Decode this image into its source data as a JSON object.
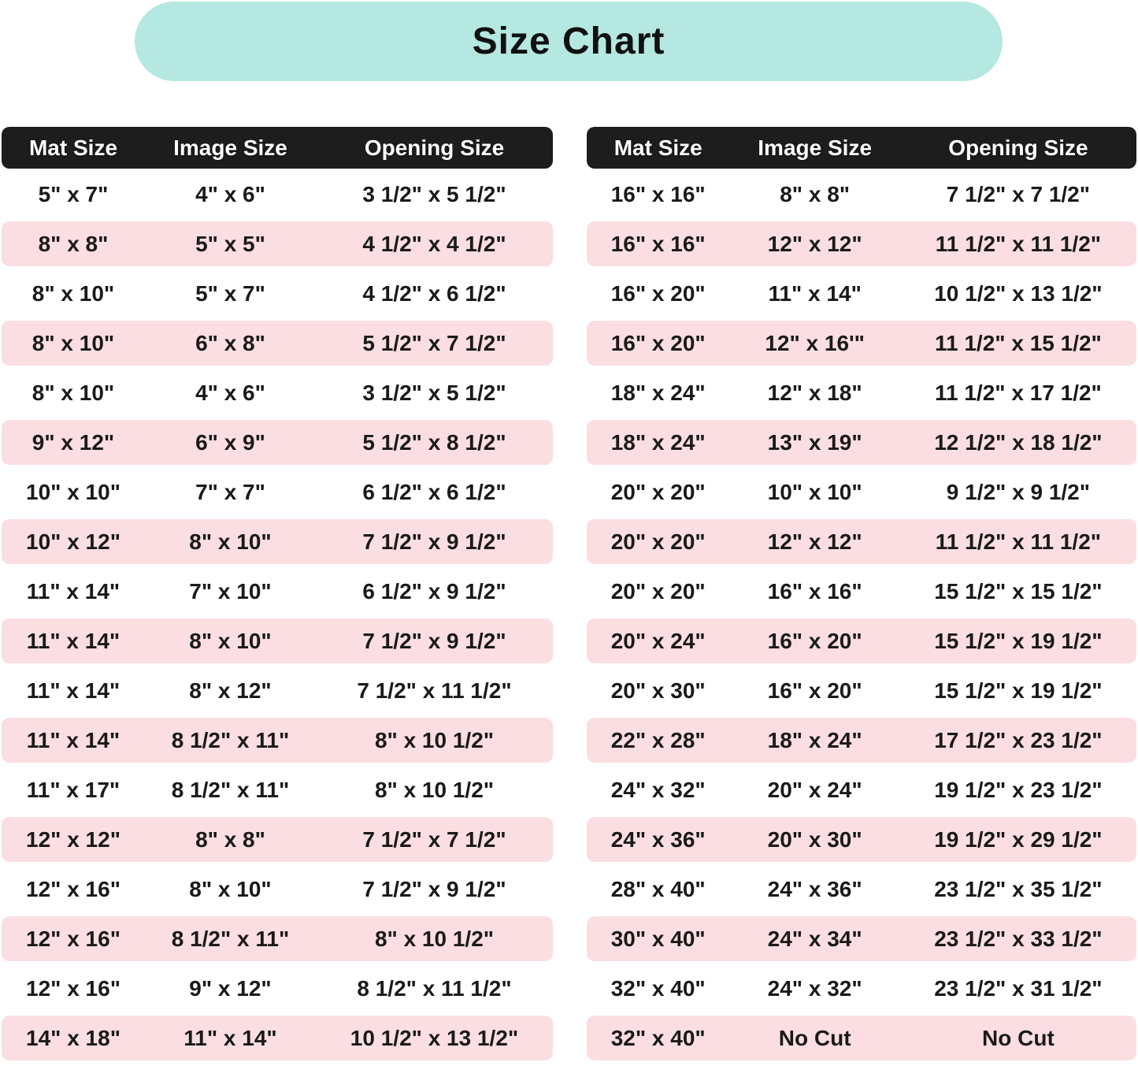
{
  "title": "Size Chart",
  "colors": {
    "title_background": "#b4e8e0",
    "header_background": "#1d1d1d",
    "header_text": "#ffffff",
    "row_pink": "#fbdee2",
    "row_white": "#ffffff",
    "body_text": "#1a1a1a"
  },
  "chart_data": [
    {
      "type": "table",
      "side": "left",
      "columns": [
        "Mat Size",
        "Image Size",
        "Opening Size"
      ],
      "rows": [
        [
          "5\" x 7\"",
          "4\" x 6\"",
          "3 1/2\" x 5 1/2\""
        ],
        [
          "8\" x 8\"",
          "5\" x 5\"",
          "4 1/2\" x 4 1/2\""
        ],
        [
          "8\" x 10\"",
          "5\" x 7\"",
          "4 1/2\" x 6 1/2\""
        ],
        [
          "8\" x 10\"",
          "6\" x 8\"",
          "5 1/2\" x 7 1/2\""
        ],
        [
          "8\" x 10\"",
          "4\" x 6\"",
          "3 1/2\" x 5 1/2\""
        ],
        [
          "9\" x 12\"",
          "6\" x 9\"",
          "5 1/2\" x 8 1/2\""
        ],
        [
          "10\" x 10\"",
          "7\" x 7\"",
          "6 1/2\" x 6 1/2\""
        ],
        [
          "10\" x 12\"",
          "8\" x 10\"",
          "7 1/2\" x 9 1/2\""
        ],
        [
          "11\" x 14\"",
          "7\" x 10\"",
          "6 1/2\" x 9 1/2\""
        ],
        [
          "11\" x 14\"",
          "8\" x 10\"",
          "7 1/2\" x 9 1/2\""
        ],
        [
          "11\" x 14\"",
          "8\" x 12\"",
          "7 1/2\" x 11 1/2\""
        ],
        [
          "11\" x 14\"",
          "8 1/2\" x 11\"",
          "8\" x 10 1/2\""
        ],
        [
          "11\" x 17\"",
          "8 1/2\" x 11\"",
          "8\" x 10 1/2\""
        ],
        [
          "12\" x 12\"",
          "8\" x 8\"",
          "7 1/2\" x 7 1/2\""
        ],
        [
          "12\" x 16\"",
          "8\" x 10\"",
          "7 1/2\" x 9 1/2\""
        ],
        [
          "12\" x 16\"",
          "8 1/2\" x 11\"",
          "8\" x 10 1/2\""
        ],
        [
          "12\" x 16\"",
          "9\" x 12\"",
          "8 1/2\" x 11 1/2\""
        ],
        [
          "14\" x 18\"",
          "11\" x 14\"",
          "10 1/2\" x 13 1/2\""
        ]
      ]
    },
    {
      "type": "table",
      "side": "right",
      "columns": [
        "Mat Size",
        "Image Size",
        "Opening Size"
      ],
      "rows": [
        [
          "16\" x 16\"",
          "8\" x 8\"",
          "7 1/2\" x 7 1/2\""
        ],
        [
          "16\" x 16\"",
          "12\" x 12\"",
          "11 1/2\" x 11 1/2\""
        ],
        [
          "16\" x 20\"",
          "11\" x 14\"",
          "10 1/2\" x 13 1/2\""
        ],
        [
          "16\" x 20\"",
          "12\" x 16'\"",
          "11 1/2\" x 15 1/2\""
        ],
        [
          "18\" x 24\"",
          "12\" x 18\"",
          "11 1/2\" x 17 1/2\""
        ],
        [
          "18\" x 24\"",
          "13\" x 19\"",
          "12 1/2\" x 18 1/2\""
        ],
        [
          "20\" x 20\"",
          "10\" x 10\"",
          "9 1/2\" x 9 1/2\""
        ],
        [
          "20\" x 20\"",
          "12\" x 12\"",
          "11 1/2\" x 11 1/2\""
        ],
        [
          "20\" x 20\"",
          "16\" x 16\"",
          "15 1/2\" x 15 1/2\""
        ],
        [
          "20\" x 24\"",
          "16\" x 20\"",
          "15 1/2\" x 19 1/2\""
        ],
        [
          "20\" x 30\"",
          "16\" x 20\"",
          "15 1/2\" x 19 1/2\""
        ],
        [
          "22\" x 28\"",
          "18\" x 24\"",
          "17 1/2\" x 23 1/2\""
        ],
        [
          "24\" x 32\"",
          "20\" x 24\"",
          "19 1/2\" x 23 1/2\""
        ],
        [
          "24\" x 36\"",
          "20\" x 30\"",
          "19 1/2\" x 29 1/2\""
        ],
        [
          "28\" x 40\"",
          "24\" x 36\"",
          "23 1/2\" x 35 1/2\""
        ],
        [
          "30\" x 40\"",
          "24\" x 34\"",
          "23 1/2\" x 33 1/2\""
        ],
        [
          "32\" x 40\"",
          "24\" x 32\"",
          "23 1/2\" x 31 1/2\""
        ],
        [
          "32\" x 40\"",
          "No Cut",
          "No Cut"
        ]
      ]
    }
  ]
}
